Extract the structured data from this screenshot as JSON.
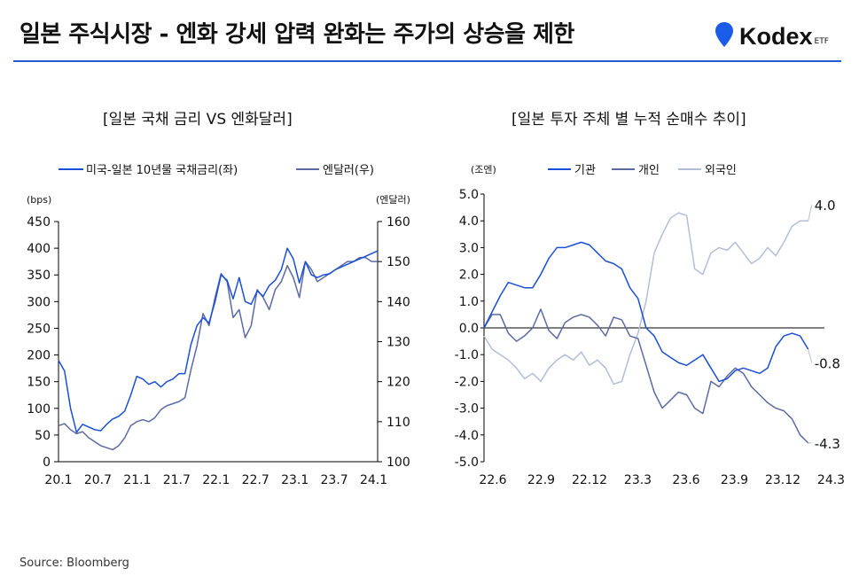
{
  "header": {
    "title": "일본 주식시장 - 엔화 강세 압력 완화는 주가의 상승을 제한",
    "brand": "Kodex",
    "brand_suffix": "ETF"
  },
  "colors": {
    "primary": "#1a4fd6",
    "secondary": "#5b6aa3",
    "tertiary": "#b3bdd6",
    "accent_rule": "#2a5bd7"
  },
  "source": "Source: Bloomberg",
  "chart_data": [
    {
      "type": "line",
      "title": "[일본 국채 금리 VS 엔화달러]",
      "left_unit": "(bps)",
      "right_unit": "(엔달러)",
      "x_ticks": [
        "20.1",
        "20.7",
        "21.1",
        "21.7",
        "22.1",
        "22.7",
        "23.1",
        "23.7",
        "24.1"
      ],
      "x_range": [
        "2020-01",
        "2024-04"
      ],
      "ylim_left": [
        0,
        450
      ],
      "ylim_right": [
        100,
        160
      ],
      "y_ticks_left": [
        "0",
        "50",
        "100",
        "150",
        "200",
        "250",
        "300",
        "350",
        "400",
        "450"
      ],
      "y_ticks_right": [
        "100",
        "110",
        "120",
        "130",
        "140",
        "150",
        "160"
      ],
      "series": [
        {
          "name": "미국-일본 10년물 국채금리(좌)",
          "axis": "left",
          "x": [
            0,
            1,
            2,
            3,
            4,
            5,
            6,
            7,
            8,
            9,
            10,
            11,
            12,
            13,
            14,
            15,
            16,
            17,
            18,
            19,
            20,
            21,
            22,
            23,
            24,
            25,
            26,
            27,
            28,
            29,
            30,
            31,
            32,
            33,
            34,
            35,
            36,
            37,
            38,
            39,
            40,
            41,
            42,
            43,
            44,
            45,
            46,
            47,
            48,
            49,
            50,
            51,
            52,
            53
          ],
          "values": [
            190,
            170,
            100,
            55,
            70,
            65,
            60,
            58,
            70,
            80,
            85,
            95,
            125,
            160,
            155,
            145,
            150,
            140,
            150,
            155,
            165,
            165,
            220,
            255,
            270,
            260,
            300,
            350,
            340,
            305,
            345,
            300,
            295,
            320,
            310,
            330,
            340,
            360,
            400,
            380,
            335,
            375,
            350,
            345,
            350,
            352,
            360,
            365,
            370,
            375,
            380,
            385,
            390,
            395
          ]
        },
        {
          "name": "엔달러(우)",
          "axis": "right",
          "x": [
            0,
            1,
            2,
            3,
            4,
            5,
            6,
            7,
            8,
            9,
            10,
            11,
            12,
            13,
            14,
            15,
            16,
            17,
            18,
            19,
            20,
            21,
            22,
            23,
            24,
            25,
            26,
            27,
            28,
            29,
            30,
            31,
            32,
            33,
            34,
            35,
            36,
            37,
            38,
            39,
            40,
            41,
            42,
            43,
            44,
            45,
            46,
            47,
            48,
            49,
            50,
            51,
            52,
            53
          ],
          "values": [
            109,
            109.5,
            108,
            107,
            107.5,
            106,
            105,
            104,
            103.5,
            103,
            104,
            106,
            109,
            110,
            110.5,
            110,
            111,
            113,
            114,
            114.5,
            115,
            116,
            123,
            129,
            137,
            134,
            141,
            147,
            145,
            136,
            138,
            131,
            134,
            143,
            141,
            138,
            143,
            145,
            149,
            146,
            141,
            150,
            148,
            145,
            146,
            147,
            148,
            149,
            150,
            150,
            151,
            151,
            150,
            150
          ]
        }
      ]
    },
    {
      "type": "line",
      "title": "[일본 투자 주체 별 누적 순매수 추이]",
      "unit": "(조엔)",
      "x_ticks": [
        "22.6",
        "22.9",
        "22.12",
        "23.3",
        "23.6",
        "23.9",
        "23.12",
        "24.3"
      ],
      "x_range": [
        "2022-06",
        "2024-03"
      ],
      "ylim": [
        -5,
        5
      ],
      "y_ticks": [
        "5.0",
        "4.0",
        "3.0",
        "2.0",
        "1.0",
        "0.0",
        "-1.0",
        "-2.0",
        "-3.0",
        "-4.0",
        "-5.0"
      ],
      "series": [
        {
          "name": "기관",
          "x": [
            0,
            0.5,
            1,
            1.5,
            2,
            2.5,
            3,
            3.5,
            4,
            4.5,
            5,
            5.5,
            6,
            6.5,
            7,
            7.5,
            8,
            8.5,
            9,
            9.5,
            10,
            10.5,
            11,
            11.5,
            12,
            12.5,
            13,
            13.5,
            14,
            14.5,
            15,
            15.5,
            16,
            16.5,
            17,
            17.5,
            18,
            18.5,
            19,
            19.5,
            20
          ],
          "values": [
            0,
            0.6,
            1.2,
            1.7,
            1.6,
            1.5,
            1.5,
            2.0,
            2.6,
            3.0,
            3.0,
            3.1,
            3.2,
            3.1,
            2.8,
            2.5,
            2.4,
            2.2,
            1.5,
            1.1,
            0,
            -0.3,
            -0.9,
            -1.1,
            -1.3,
            -1.4,
            -1.2,
            -1.0,
            -1.5,
            -2.0,
            -1.9,
            -1.6,
            -1.5,
            -1.6,
            -1.7,
            -1.5,
            -0.7,
            -0.3,
            -0.2,
            -0.3,
            -0.8
          ]
        },
        {
          "name": "개인",
          "x": [
            0,
            0.5,
            1,
            1.5,
            2,
            2.5,
            3,
            3.5,
            4,
            4.5,
            5,
            5.5,
            6,
            6.5,
            7,
            7.5,
            8,
            8.5,
            9,
            9.5,
            10,
            10.5,
            11,
            11.5,
            12,
            12.5,
            13,
            13.5,
            14,
            14.5,
            15,
            15.5,
            16,
            16.5,
            17,
            17.5,
            18,
            18.5,
            19,
            19.5,
            20
          ],
          "values": [
            0,
            0.5,
            0.5,
            -0.2,
            -0.5,
            -0.3,
            0,
            0.7,
            -0.1,
            -0.4,
            0.2,
            0.4,
            0.5,
            0.4,
            0.1,
            -0.3,
            0.4,
            0.3,
            -0.3,
            -0.4,
            -1.4,
            -2.4,
            -3.0,
            -2.7,
            -2.4,
            -2.5,
            -3.0,
            -3.2,
            -2.0,
            -2.2,
            -1.8,
            -1.5,
            -1.7,
            -2.2,
            -2.5,
            -2.8,
            -3.0,
            -3.1,
            -3.4,
            -4.0,
            -4.3
          ]
        },
        {
          "name": "외국인",
          "x": [
            0,
            0.5,
            1,
            1.5,
            2,
            2.5,
            3,
            3.5,
            4,
            4.5,
            5,
            5.5,
            6,
            6.5,
            7,
            7.5,
            8,
            8.5,
            9,
            9.5,
            10,
            10.5,
            11,
            11.5,
            12,
            12.5,
            13,
            13.5,
            14,
            14.5,
            15,
            15.5,
            16,
            16.5,
            17,
            17.5,
            18,
            18.5,
            19,
            19.5,
            20
          ],
          "values": [
            -0.3,
            -0.8,
            -1.0,
            -1.2,
            -1.5,
            -1.9,
            -1.7,
            -2.0,
            -1.5,
            -1.2,
            -1.0,
            -1.2,
            -0.9,
            -1.4,
            -1.2,
            -1.5,
            -2.1,
            -2.0,
            -1.0,
            -0.2,
            1.0,
            2.8,
            3.5,
            4.1,
            4.3,
            4.2,
            2.2,
            2.0,
            2.8,
            3.0,
            2.9,
            3.2,
            2.8,
            2.4,
            2.6,
            3.0,
            2.7,
            3.2,
            3.8,
            4.0,
            4.0
          ]
        }
      ],
      "end_labels": [
        "4.0",
        "-0.8",
        "-4.3"
      ]
    }
  ]
}
